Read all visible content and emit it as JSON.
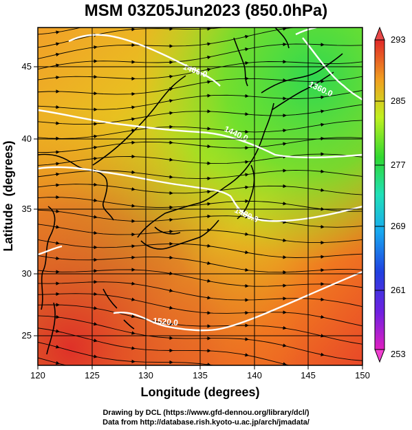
{
  "title": "MSM 03Z05Jun2023 (850.0hPa)",
  "map": {
    "xaxis": {
      "label": "Longitude (degrees)",
      "range": [
        120,
        150
      ],
      "ticks": [
        "120",
        "125",
        "130",
        "135",
        "140",
        "145",
        "150"
      ]
    },
    "yaxis": {
      "label": "Latitude  (degrees)",
      "range": [
        22.5,
        48
      ],
      "ticks": [
        "25",
        "30",
        "35",
        "40",
        "45"
      ]
    },
    "grid": true,
    "contour_labels": [
      "1520.0",
      "1480.0",
      "1440.0",
      "1400.0",
      "1360.0"
    ],
    "colorbar": {
      "ticks": [
        "293",
        "285",
        "277",
        "269",
        "261",
        "253"
      ],
      "range": [
        253,
        293
      ],
      "colors": [
        "#e020c0",
        "#2020e0",
        "#1aa0f0",
        "#20e0b0",
        "#30d020",
        "#c8f020",
        "#f0c020",
        "#f06020",
        "#e03028"
      ]
    }
  },
  "footer": {
    "line1": "Drawing by DCL (https://www.gfd-dennou.org/library/dcl/)",
    "line2": "Data from http://database.rish.kyoto-u.ac.jp/arch/jmadata/"
  }
}
